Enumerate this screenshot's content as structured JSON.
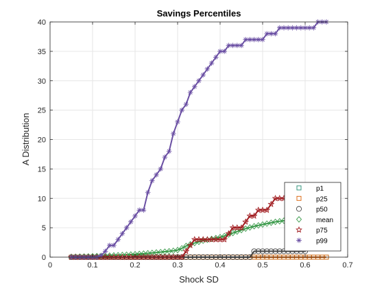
{
  "chart_data": {
    "type": "line",
    "title": "Savings Percentiles",
    "xlabel": "Shock SD",
    "ylabel": "A Distribution",
    "xlim": [
      0,
      0.7
    ],
    "ylim": [
      0,
      40
    ],
    "xticks": [
      0,
      0.1,
      0.2,
      0.3,
      0.4,
      0.5,
      0.6,
      0.7
    ],
    "xtick_labels": [
      "0",
      "0.1",
      "0.2",
      "0.3",
      "0.4",
      "0.5",
      "0.6",
      "0.7"
    ],
    "yticks": [
      0,
      5,
      10,
      15,
      20,
      25,
      30,
      35,
      40
    ],
    "ytick_labels": [
      "0",
      "5",
      "10",
      "15",
      "20",
      "25",
      "30",
      "35",
      "40"
    ],
    "grid": true,
    "legend_position": "bottom-right",
    "x": [
      0.05,
      0.06,
      0.07,
      0.08,
      0.09,
      0.1,
      0.11,
      0.12,
      0.13,
      0.14,
      0.15,
      0.16,
      0.17,
      0.18,
      0.19,
      0.2,
      0.21,
      0.22,
      0.23,
      0.24,
      0.25,
      0.26,
      0.27,
      0.28,
      0.29,
      0.3,
      0.31,
      0.32,
      0.33,
      0.34,
      0.35,
      0.36,
      0.37,
      0.38,
      0.39,
      0.4,
      0.41,
      0.42,
      0.43,
      0.44,
      0.45,
      0.46,
      0.47,
      0.48,
      0.49,
      0.5,
      0.51,
      0.52,
      0.53,
      0.54,
      0.55,
      0.56,
      0.57,
      0.58,
      0.59,
      0.6,
      0.61,
      0.62,
      0.63,
      0.64,
      0.65
    ],
    "series": [
      {
        "name": "p1",
        "marker": "square",
        "color": "#1f8a70",
        "values": [
          0,
          0,
          0,
          0,
          0,
          0,
          0,
          0,
          0,
          0,
          0,
          0,
          0,
          0,
          0,
          0,
          0,
          0,
          0,
          0,
          0,
          0,
          0,
          0,
          0,
          0,
          0,
          0,
          0,
          0,
          0,
          0,
          0,
          0,
          0,
          0,
          0,
          0,
          0,
          0,
          0,
          0,
          0,
          0,
          0,
          0,
          0,
          0,
          0,
          0,
          0,
          0,
          0,
          0,
          0,
          0,
          0,
          0,
          0,
          0,
          0
        ]
      },
      {
        "name": "p25",
        "marker": "square",
        "color": "#d95f02",
        "values": [
          0,
          0,
          0,
          0,
          0,
          0,
          0,
          0,
          0,
          0,
          0,
          0,
          0,
          0,
          0,
          0,
          0,
          0,
          0,
          0,
          0,
          0,
          0,
          0,
          0,
          0,
          0,
          0,
          0,
          0,
          0,
          0,
          0,
          0,
          0,
          0,
          0,
          0,
          0,
          0,
          0,
          0,
          0,
          0,
          0,
          0,
          0,
          0,
          0,
          0,
          0,
          0,
          0,
          0,
          0,
          0,
          0,
          0,
          0,
          0,
          0
        ]
      },
      {
        "name": "p50",
        "marker": "circle",
        "color": "#444444",
        "values": [
          0,
          0,
          0,
          0,
          0,
          0,
          0,
          0,
          0,
          0,
          0,
          0,
          0,
          0,
          0,
          0,
          0,
          0,
          0,
          0,
          0,
          0,
          0,
          0,
          0,
          0,
          0,
          0,
          0,
          0,
          0,
          0,
          0,
          0,
          0,
          0,
          0,
          0,
          0,
          0,
          0,
          0,
          0,
          1,
          1,
          1,
          1,
          1,
          1,
          1,
          1,
          1,
          1,
          1,
          1,
          1,
          2,
          2,
          2,
          2,
          2
        ]
      },
      {
        "name": "mean",
        "marker": "diamond",
        "color": "#3a9a4a",
        "values": [
          0.05,
          0.07,
          0.09,
          0.11,
          0.13,
          0.15,
          0.18,
          0.2,
          0.23,
          0.26,
          0.3,
          0.33,
          0.37,
          0.41,
          0.45,
          0.5,
          0.55,
          0.6,
          0.66,
          0.72,
          0.79,
          0.86,
          0.93,
          1.0,
          1.08,
          1.2,
          1.5,
          1.9,
          2.2,
          2.4,
          2.6,
          2.8,
          2.95,
          3.1,
          3.25,
          3.4,
          3.6,
          3.85,
          4.1,
          4.35,
          4.6,
          4.85,
          5.05,
          5.25,
          5.4,
          5.55,
          5.7,
          5.85,
          6.0,
          6.1,
          6.2,
          6.3,
          6.4,
          6.5,
          6.6,
          6.7,
          6.85,
          7.0,
          7.15,
          7.25,
          7.4
        ]
      },
      {
        "name": "p75",
        "marker": "star",
        "color": "#a11d21",
        "values": [
          0,
          0,
          0,
          0,
          0,
          0,
          0,
          0,
          0,
          0,
          0,
          0,
          0,
          0,
          0,
          0,
          0,
          0,
          0,
          0,
          0,
          0,
          0,
          0,
          0,
          0,
          0,
          1,
          2,
          3,
          3,
          3,
          3,
          3,
          3,
          3,
          3,
          4,
          5,
          5,
          5,
          6,
          7,
          7,
          8,
          8,
          8,
          9,
          10,
          10,
          10,
          10,
          10,
          11,
          11,
          11,
          11,
          11,
          11,
          11,
          11
        ]
      },
      {
        "name": "p99",
        "marker": "asterisk",
        "color": "#6a4fa3",
        "values": [
          0,
          0,
          0,
          0,
          0,
          0,
          0,
          0.3,
          1,
          2,
          2,
          3,
          4,
          5,
          6,
          7,
          8,
          8,
          11,
          13,
          14,
          15,
          17,
          18,
          21,
          23,
          25,
          26,
          28,
          29,
          30,
          31,
          32,
          33,
          34,
          35,
          35,
          36,
          36,
          36,
          36,
          37,
          37,
          37,
          37,
          37,
          38,
          38,
          38,
          39,
          39,
          39,
          39,
          39,
          39,
          39,
          39,
          39,
          40,
          40,
          40
        ]
      }
    ]
  }
}
